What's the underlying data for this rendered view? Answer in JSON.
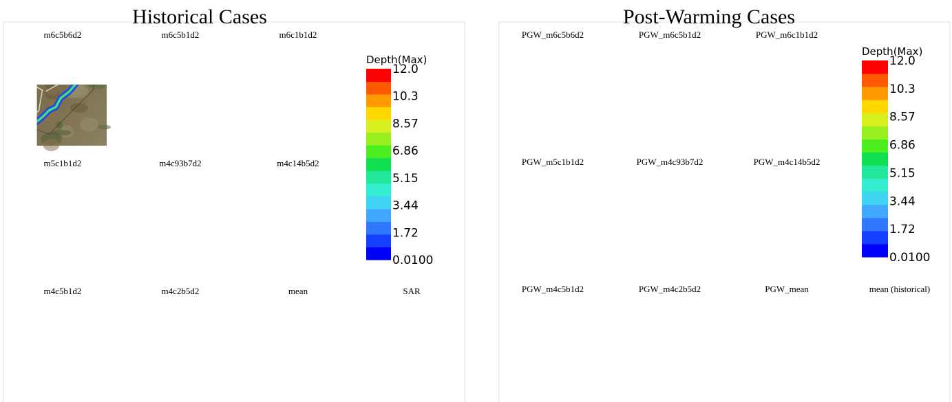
{
  "historical": {
    "title": "Historical Cases",
    "panels": [
      "m6c5b6d2",
      "m6c5b1d2",
      "m6c1b1d2",
      "m5c1b1d2",
      "m4c93b7d2",
      "m4c14b5d2",
      "m4c5b1d2",
      "m4c2b5d2",
      "mean",
      "SAR"
    ],
    "colorbar": {
      "title": "Depth(Max)",
      "labels": [
        "12.0",
        "10.3",
        "8.57",
        "6.86",
        "5.15",
        "3.44",
        "1.72",
        "0.0100"
      ]
    }
  },
  "post_warming": {
    "title": "Post-Warming Cases",
    "panels": [
      "PGW_m6c5b6d2",
      "PGW_m6c5b1d2",
      "PGW_m6c1b1d2",
      "PGW_m5c1b1d2",
      "PGW_m4c93b7d2",
      "PGW_m4c14b5d2",
      "PGW_m4c5b1d2",
      "PGW_m4c2b5d2",
      "PGW_mean",
      "mean (historical)"
    ],
    "colorbar": {
      "title": "Depth(Max)",
      "labels": [
        "12.0",
        "10.3",
        "8.57",
        "6.86",
        "5.15",
        "3.44",
        "1.72",
        "0.0100"
      ]
    }
  }
}
